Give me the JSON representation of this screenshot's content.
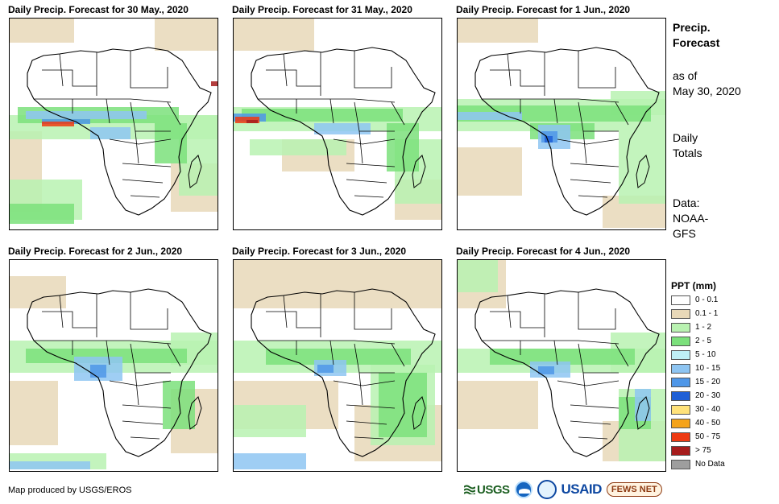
{
  "panels": [
    {
      "title": "Daily Precip. Forecast for 30 May., 2020"
    },
    {
      "title": "Daily Precip. Forecast for 31 May., 2020"
    },
    {
      "title": "Daily Precip. Forecast for 1 Jun., 2020"
    },
    {
      "title": "Daily Precip. Forecast for 2 Jun., 2020"
    },
    {
      "title": "Daily Precip. Forecast for 3 Jun., 2020"
    },
    {
      "title": "Daily Precip. Forecast for 4 Jun., 2020"
    }
  ],
  "sidebar": {
    "title_line1": "Precip.",
    "title_line2": "Forecast",
    "as_of_line1": "as of",
    "as_of_line2": "May 30, 2020",
    "totals_line1": "Daily",
    "totals_line2": "Totals",
    "data_line1": "Data:",
    "data_line2": "NOAA-",
    "data_line3": "GFS"
  },
  "legend": {
    "title": "PPT (mm)",
    "items": [
      {
        "label": "0 - 0.1",
        "color": "#ffffff"
      },
      {
        "label": "0.1 - 1",
        "color": "#e8d8b8"
      },
      {
        "label": "1 - 2",
        "color": "#b9f2b1"
      },
      {
        "label": "2 - 5",
        "color": "#7be07b"
      },
      {
        "label": "5 - 10",
        "color": "#bfeff5"
      },
      {
        "label": "10 - 15",
        "color": "#8ec5f2"
      },
      {
        "label": "15 - 20",
        "color": "#4f97e8"
      },
      {
        "label": "20 - 30",
        "color": "#1f5fd6"
      },
      {
        "label": "30 - 40",
        "color": "#ffe27a"
      },
      {
        "label": "40 - 50",
        "color": "#f5a31a"
      },
      {
        "label": "50 - 75",
        "color": "#ee3a12"
      },
      {
        "label": "> 75",
        "color": "#a61c1c"
      },
      {
        "label": "No Data",
        "color": "#9e9e9e"
      }
    ]
  },
  "credit": "Map produced by USGS/EROS",
  "logos": {
    "usgs": "USGS",
    "usaid": "USAID",
    "fews": "FEWS NET"
  }
}
